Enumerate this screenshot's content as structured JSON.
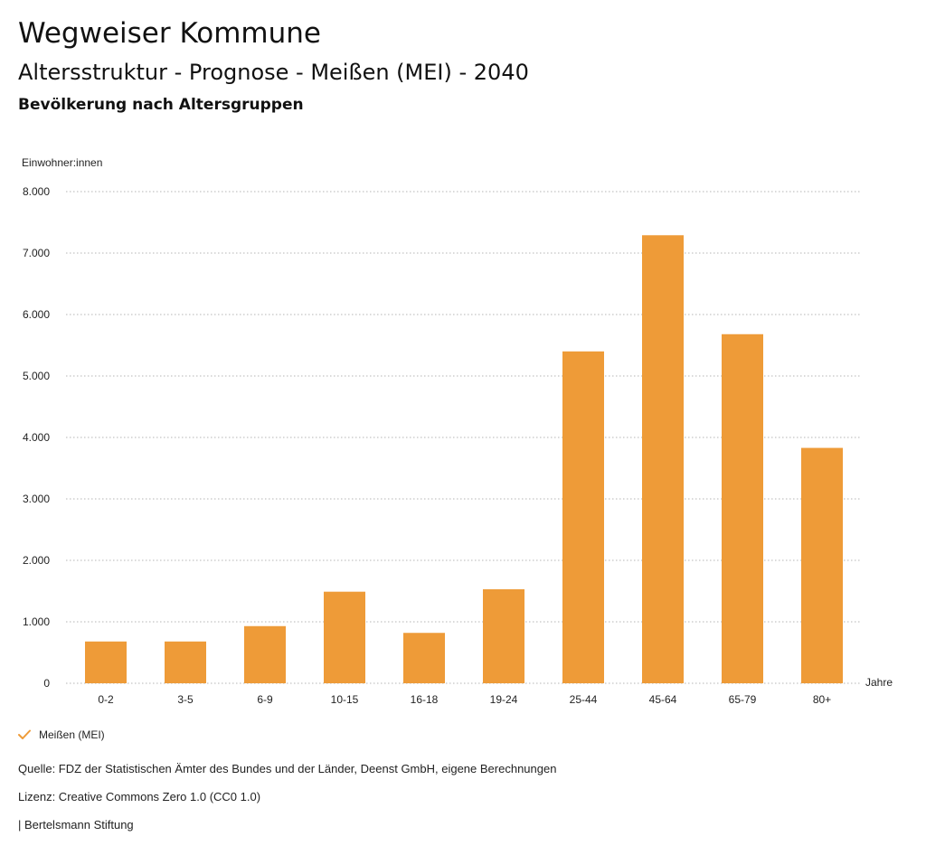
{
  "header": {
    "title": "Wegweiser Kommune",
    "subtitle": "Altersstruktur - Prognose - Meißen (MEI) - 2040",
    "chart_title": "Bevölkerung nach Altersgruppen"
  },
  "chart_data": {
    "type": "bar",
    "title": "Bevölkerung nach Altersgruppen",
    "ylabel": "Einwohner:innen",
    "xlabel": "Jahre",
    "categories": [
      "0-2",
      "3-5",
      "6-9",
      "10-15",
      "16-18",
      "19-24",
      "25-44",
      "45-64",
      "65-79",
      "80+"
    ],
    "series": [
      {
        "name": "Meißen (MEI)",
        "values": [
          680,
          680,
          930,
          1490,
          820,
          1530,
          5400,
          7290,
          5680,
          3830
        ]
      }
    ],
    "ylim": [
      0,
      8000
    ],
    "yticks": [
      0,
      1000,
      2000,
      3000,
      4000,
      5000,
      6000,
      7000,
      8000
    ],
    "ytick_labels": [
      "0",
      "1.000",
      "2.000",
      "3.000",
      "4.000",
      "5.000",
      "6.000",
      "7.000",
      "8.000"
    ],
    "grid": true,
    "legend_position": "bottom-left",
    "bar_color": "#ee9b38"
  },
  "legend": {
    "label": "Meißen (MEI)",
    "icon": "check-icon",
    "color": "#ee9b38"
  },
  "footer": {
    "source": "Quelle: FDZ der Statistischen Ämter des Bundes und der Länder, Deenst GmbH, eigene Berechnungen",
    "license": "Lizenz: Creative Commons Zero 1.0 (CC0 1.0)",
    "publisher": "| Bertelsmann Stiftung"
  }
}
